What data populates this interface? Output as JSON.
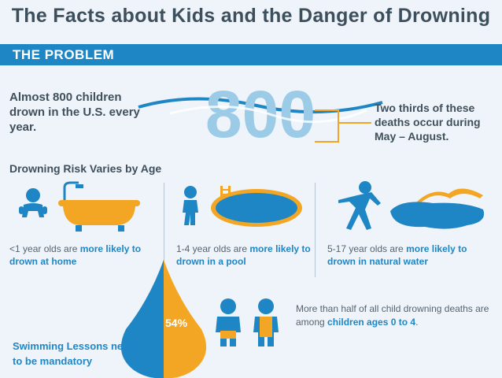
{
  "title": "The Facts about Kids and the Danger of Drowning",
  "banner": "THE PROBLEM",
  "stat": {
    "number": "800",
    "left_text": "Almost 800 children drown in the U.S. every year.",
    "right_text": "Two thirds of these deaths occur during May – August."
  },
  "age_section": {
    "heading": "Drowning Risk Varies by Age",
    "groups": [
      {
        "prefix": "<1 year olds are ",
        "emph": "more likely to drown at home",
        "icon": "bathtub-icon"
      },
      {
        "prefix": "1-4 year olds are ",
        "emph": "more likely to drown in a pool",
        "icon": "pool-icon"
      },
      {
        "prefix": "5-17 year olds are ",
        "emph": "more likely to drown in natural water",
        "icon": "lake-icon"
      }
    ]
  },
  "drop": {
    "percent": "54%",
    "value": 54
  },
  "bottom": {
    "half_prefix": "More than half of all child drowning deaths are among ",
    "half_emph": "children ages 0 to 4",
    "half_suffix": ".",
    "swim": "Swimming Lessons need to be mandatory"
  },
  "colors": {
    "blue": "#1f86c6",
    "orange": "#f2a623",
    "light_blue": "#9ccbe8"
  }
}
